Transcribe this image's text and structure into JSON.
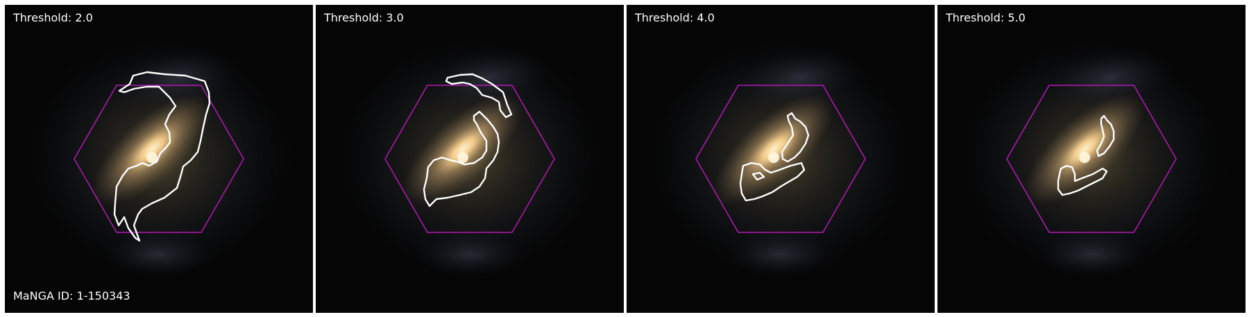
{
  "figure": {
    "id_label": "MaNGA ID: 1-150343",
    "colors": {
      "background": "#050505",
      "hexagon": "#b31bb3",
      "contour": "#ffffff",
      "galaxy_core": "#ffe8b0"
    },
    "panels": [
      {
        "threshold_label": "Threshold: 2.0",
        "threshold": 2.0
      },
      {
        "threshold_label": "Threshold: 3.0",
        "threshold": 3.0
      },
      {
        "threshold_label": "Threshold: 4.0",
        "threshold": 4.0
      },
      {
        "threshold_label": "Threshold: 5.0",
        "threshold": 5.0
      }
    ]
  }
}
